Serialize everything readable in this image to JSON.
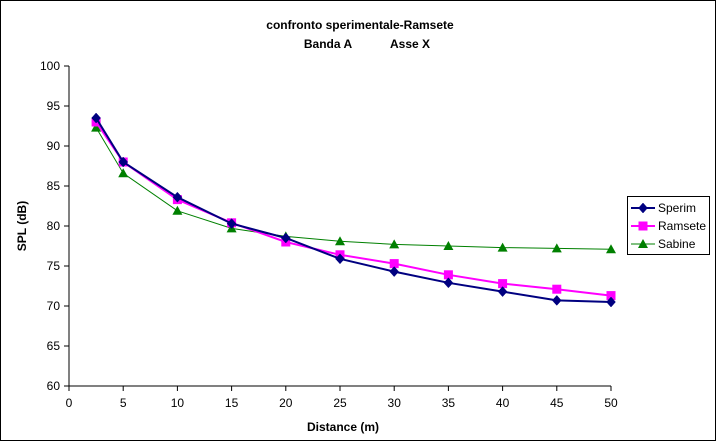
{
  "chart_data": {
    "type": "line",
    "title_line1": "confronto sperimentale-Ramsete",
    "title_line2_left": "Banda  A",
    "title_line2_right": "Asse X",
    "xlabel": "Distance (m)",
    "ylabel": "SPL (dB)",
    "xlim": [
      0,
      50
    ],
    "ylim": [
      60,
      100
    ],
    "x_ticks": [
      0,
      5,
      10,
      15,
      20,
      25,
      30,
      35,
      40,
      45,
      50
    ],
    "y_ticks": [
      60,
      65,
      70,
      75,
      80,
      85,
      90,
      95,
      100
    ],
    "grid": false,
    "legend_position": "right",
    "x": [
      2.5,
      5,
      10,
      15,
      20,
      25,
      30,
      35,
      40,
      45,
      50
    ],
    "series": [
      {
        "name": "Sperim",
        "color": "#000080",
        "marker": "diamond",
        "values": [
          93.5,
          88.0,
          83.6,
          80.3,
          78.5,
          75.9,
          74.3,
          72.9,
          71.8,
          70.7,
          70.5
        ]
      },
      {
        "name": "Ramsete",
        "color": "#ff00ff",
        "marker": "square",
        "values": [
          93.0,
          88.0,
          83.3,
          80.4,
          78.0,
          76.4,
          75.3,
          73.9,
          72.8,
          72.1,
          71.3
        ]
      },
      {
        "name": "Sabine",
        "color": "#008000",
        "marker": "triangle",
        "values": [
          92.3,
          86.6,
          81.9,
          79.7,
          78.7,
          78.1,
          77.7,
          77.5,
          77.3,
          77.2,
          77.1
        ]
      }
    ]
  }
}
